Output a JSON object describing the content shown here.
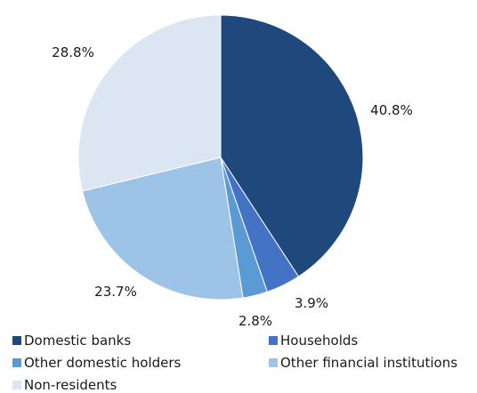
{
  "chart_data": {
    "type": "pie",
    "title": "",
    "slices": [
      {
        "label": "Domestic banks",
        "value": 40.8,
        "value_label": "40.8%",
        "color": "#1f497d"
      },
      {
        "label": "Households",
        "value": 3.9,
        "value_label": "3.9%",
        "color": "#4472c4"
      },
      {
        "label": "Other domestic holders",
        "value": 2.8,
        "value_label": "2.8%",
        "color": "#5b9bd5"
      },
      {
        "label": "Other financial institutions",
        "value": 23.7,
        "value_label": "23.7%",
        "color": "#9dc3e6"
      },
      {
        "label": "Non-residents",
        "value": 28.8,
        "value_label": "28.8%",
        "color": "#dce6f2"
      }
    ],
    "start_angle": "12 o'clock",
    "direction": "clockwise",
    "legend_position": "bottom"
  }
}
